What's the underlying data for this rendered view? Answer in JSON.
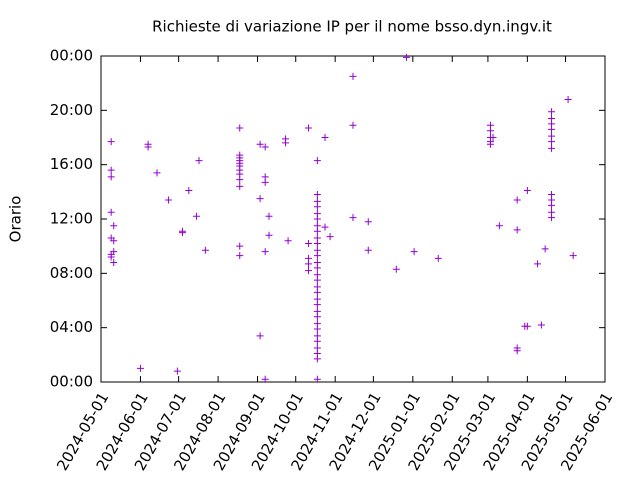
{
  "chart_data": {
    "type": "scatter",
    "title": "Richieste di variazione IP per il nome bsso.dyn.ingv.it",
    "y_label": "Orario",
    "color": "#9400d3",
    "xlim": [
      "2024-05-01",
      "2025-06-01"
    ],
    "xticks": [
      "2024-05-01",
      "2024-06-01",
      "2024-07-01",
      "2024-08-01",
      "2024-09-01",
      "2024-10-01",
      "2024-11-01",
      "2024-12-01",
      "2025-01-01",
      "2025-02-01",
      "2025-03-01",
      "2025-04-01",
      "2025-05-01",
      "2025-06-01"
    ],
    "ylim": [
      0,
      24
    ],
    "yticks": [
      {
        "value": 0,
        "label": "00:00"
      },
      {
        "value": 4,
        "label": "04:00"
      },
      {
        "value": 8,
        "label": "08:00"
      },
      {
        "value": 12,
        "label": "12:00"
      },
      {
        "value": 16,
        "label": "16:00"
      },
      {
        "value": 20,
        "label": "20:00"
      },
      {
        "value": 24,
        "label": "00:00"
      }
    ],
    "x": [
      "2024-05-09",
      "2024-05-09",
      "2024-05-09",
      "2024-05-09",
      "2024-05-09",
      "2024-05-09",
      "2024-05-09",
      "2024-05-11",
      "2024-05-11",
      "2024-05-11",
      "2024-05-11",
      "2024-06-01",
      "2024-06-07",
      "2024-06-07",
      "2024-06-14",
      "2024-06-23",
      "2024-06-30",
      "2024-07-04",
      "2024-07-04",
      "2024-07-09",
      "2024-07-15",
      "2024-07-17",
      "2024-07-22",
      "2024-08-18",
      "2024-08-18",
      "2024-08-18",
      "2024-08-18",
      "2024-08-18",
      "2024-08-18",
      "2024-08-18",
      "2024-08-18",
      "2024-08-18",
      "2024-08-18",
      "2024-08-18",
      "2024-08-18",
      "2024-09-03",
      "2024-09-03",
      "2024-09-03",
      "2024-09-07",
      "2024-09-07",
      "2024-09-07",
      "2024-09-07",
      "2024-09-07",
      "2024-09-10",
      "2024-09-10",
      "2024-09-23",
      "2024-09-23",
      "2024-09-25",
      "2024-10-11",
      "2024-10-11",
      "2024-10-11",
      "2024-10-11",
      "2024-10-11",
      "2024-10-18",
      "2024-10-18",
      "2024-10-18",
      "2024-10-18",
      "2024-10-18",
      "2024-10-18",
      "2024-10-18",
      "2024-10-18",
      "2024-10-18",
      "2024-10-18",
      "2024-10-18",
      "2024-10-18",
      "2024-10-18",
      "2024-10-18",
      "2024-10-18",
      "2024-10-18",
      "2024-10-18",
      "2024-10-18",
      "2024-10-18",
      "2024-10-18",
      "2024-10-18",
      "2024-10-18",
      "2024-10-18",
      "2024-10-18",
      "2024-10-18",
      "2024-10-18",
      "2024-10-18",
      "2024-10-18",
      "2024-10-18",
      "2024-10-18",
      "2024-10-24",
      "2024-10-24",
      "2024-10-28",
      "2024-11-15",
      "2024-11-15",
      "2024-11-15",
      "2024-11-27",
      "2024-11-27",
      "2024-12-19",
      "2024-12-27",
      "2025-01-02",
      "2025-01-21",
      "2025-03-03",
      "2025-03-03",
      "2025-03-03",
      "2025-03-03",
      "2025-03-03",
      "2025-03-05",
      "2025-03-10",
      "2025-03-24",
      "2025-03-24",
      "2025-03-24",
      "2025-03-24",
      "2025-03-30",
      "2025-04-01",
      "2025-04-01",
      "2025-04-09",
      "2025-04-12",
      "2025-04-15",
      "2025-04-20",
      "2025-04-20",
      "2025-04-20",
      "2025-04-20",
      "2025-04-20",
      "2025-04-20",
      "2025-04-20",
      "2025-04-20",
      "2025-04-20",
      "2025-04-20",
      "2025-04-20",
      "2025-04-20",
      "2025-05-03",
      "2025-05-07"
    ],
    "values": [
      17.7,
      15.6,
      15.1,
      12.5,
      10.6,
      9.4,
      9.2,
      11.5,
      10.4,
      9.6,
      8.8,
      1.0,
      17.3,
      17.5,
      15.4,
      13.4,
      0.8,
      11.1,
      11.0,
      14.1,
      12.2,
      16.3,
      9.7,
      18.7,
      16.7,
      16.5,
      16.3,
      16.1,
      15.9,
      15.6,
      15.3,
      14.9,
      14.4,
      10.0,
      9.3,
      17.5,
      3.4,
      13.5,
      17.3,
      15.1,
      14.7,
      9.6,
      0.2,
      12.2,
      10.8,
      17.9,
      17.6,
      10.4,
      18.7,
      10.2,
      9.1,
      8.7,
      8.2,
      13.8,
      13.3,
      12.9,
      12.4,
      12.0,
      11.5,
      11.1,
      10.6,
      10.2,
      9.7,
      9.3,
      8.8,
      8.4,
      7.9,
      7.5,
      7.0,
      6.6,
      6.1,
      5.7,
      5.2,
      4.8,
      4.3,
      3.9,
      3.4,
      3.0,
      2.5,
      2.1,
      1.7,
      16.3,
      0.2,
      18.0,
      11.4,
      10.7,
      22.5,
      18.9,
      12.1,
      11.8,
      9.7,
      8.3,
      23.9,
      9.6,
      9.1,
      18.9,
      18.5,
      18.0,
      17.7,
      17.5,
      18.0,
      11.5,
      13.4,
      11.2,
      2.3,
      2.5,
      4.1,
      4.1,
      14.1,
      8.7,
      4.2,
      9.8,
      19.9,
      19.4,
      19.0,
      18.6,
      18.1,
      17.7,
      17.2,
      13.8,
      13.4,
      13.0,
      12.5,
      12.1,
      20.8,
      9.3
    ]
  }
}
